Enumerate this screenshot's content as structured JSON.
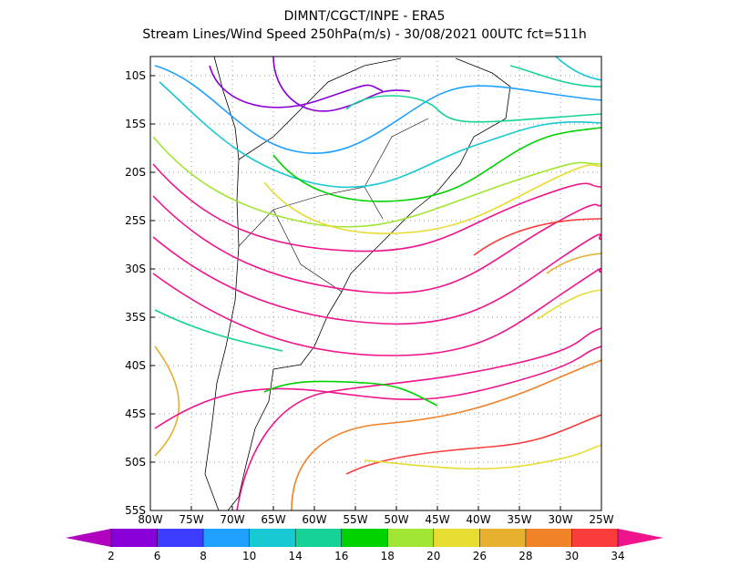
{
  "header": {
    "title": "DIMNT/CGCT/INPE  -  ERA5",
    "subtitle": "Stream Lines/Wind Speed 250hPa(m/s)  -  30/08/2021 00UTC fct=511h"
  },
  "map": {
    "lat_labels": [
      "10S",
      "15S",
      "20S",
      "25S",
      "30S",
      "35S",
      "40S",
      "45S",
      "50S",
      "55S"
    ],
    "lon_labels": [
      "80W",
      "75W",
      "70W",
      "65W",
      "60W",
      "55W",
      "50W",
      "45W",
      "40W",
      "35W",
      "30W",
      "25W"
    ]
  },
  "colorbar": {
    "labels": [
      "2",
      "6",
      "8",
      "10",
      "14",
      "16",
      "18",
      "20",
      "26",
      "28",
      "30",
      "34"
    ],
    "colors": [
      "#8a00d8",
      "#3d3dff",
      "#1ea0ff",
      "#18c8d2",
      "#16d296",
      "#00d200",
      "#a0e632",
      "#e6dc32",
      "#e6af2d",
      "#f08228",
      "#fa3c3c"
    ],
    "low_color": "#b000c0",
    "high_color": "#f0148c"
  }
}
